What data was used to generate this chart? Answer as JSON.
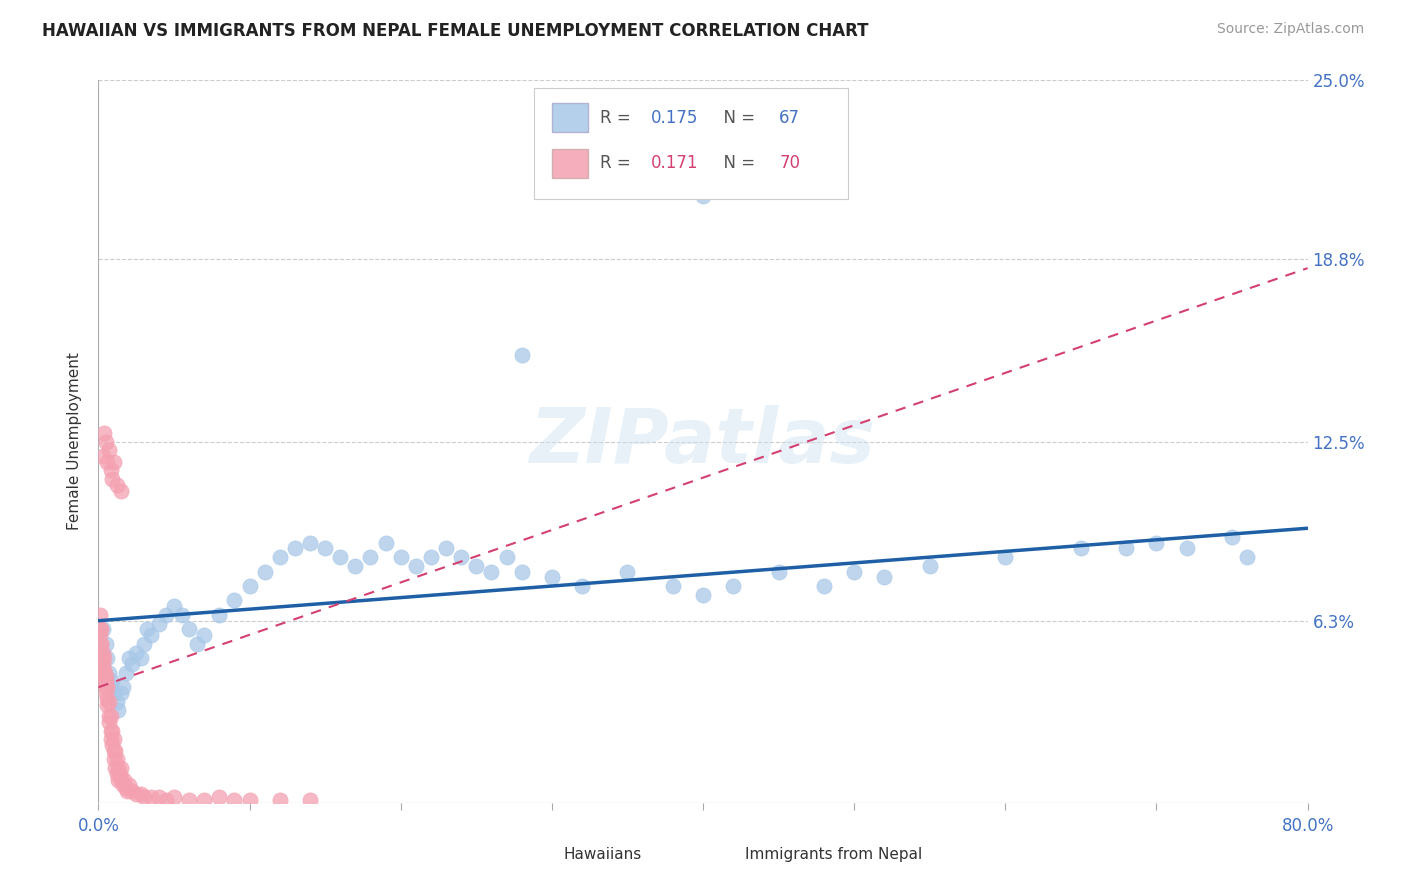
{
  "title": "HAWAIIAN VS IMMIGRANTS FROM NEPAL FEMALE UNEMPLOYMENT CORRELATION CHART",
  "source": "Source: ZipAtlas.com",
  "ylabel": "Female Unemployment",
  "r_hawaiian": 0.175,
  "n_hawaiian": 67,
  "r_nepal": 0.171,
  "n_nepal": 70,
  "xlim": [
    0,
    0.8
  ],
  "ylim": [
    0,
    0.25
  ],
  "ytick_vals": [
    0.0,
    0.063,
    0.125,
    0.188,
    0.25
  ],
  "ytick_labels": [
    "",
    "6.3%",
    "12.5%",
    "18.8%",
    "25.0%"
  ],
  "color_hawaiian": "#a8c8e8",
  "color_nepal": "#f4a0b0",
  "color_trend_hawaiian": "#1f5fa6",
  "color_trend_nepal": "#d44070",
  "background": "#ffffff",
  "hawaiian_x": [
    0.003,
    0.005,
    0.006,
    0.007,
    0.008,
    0.009,
    0.01,
    0.012,
    0.013,
    0.015,
    0.016,
    0.018,
    0.02,
    0.022,
    0.025,
    0.028,
    0.03,
    0.032,
    0.035,
    0.04,
    0.045,
    0.05,
    0.055,
    0.06,
    0.065,
    0.07,
    0.08,
    0.09,
    0.1,
    0.11,
    0.12,
    0.13,
    0.14,
    0.15,
    0.16,
    0.17,
    0.18,
    0.19,
    0.2,
    0.21,
    0.22,
    0.23,
    0.24,
    0.25,
    0.26,
    0.27,
    0.28,
    0.3,
    0.32,
    0.35,
    0.38,
    0.4,
    0.42,
    0.45,
    0.48,
    0.5,
    0.52,
    0.55,
    0.6,
    0.65,
    0.68,
    0.7,
    0.72,
    0.75,
    0.76,
    0.4,
    0.28
  ],
  "hawaiian_y": [
    0.06,
    0.055,
    0.05,
    0.045,
    0.04,
    0.042,
    0.038,
    0.035,
    0.032,
    0.038,
    0.04,
    0.045,
    0.05,
    0.048,
    0.052,
    0.05,
    0.055,
    0.06,
    0.058,
    0.062,
    0.065,
    0.068,
    0.065,
    0.06,
    0.055,
    0.058,
    0.065,
    0.07,
    0.075,
    0.08,
    0.085,
    0.088,
    0.09,
    0.088,
    0.085,
    0.082,
    0.085,
    0.09,
    0.085,
    0.082,
    0.085,
    0.088,
    0.085,
    0.082,
    0.08,
    0.085,
    0.08,
    0.078,
    0.075,
    0.08,
    0.075,
    0.072,
    0.075,
    0.08,
    0.075,
    0.08,
    0.078,
    0.082,
    0.085,
    0.088,
    0.088,
    0.09,
    0.088,
    0.092,
    0.085,
    0.21,
    0.155
  ],
  "nepal_x": [
    0.001,
    0.001,
    0.001,
    0.002,
    0.002,
    0.002,
    0.002,
    0.003,
    0.003,
    0.003,
    0.004,
    0.004,
    0.004,
    0.005,
    0.005,
    0.005,
    0.005,
    0.006,
    0.006,
    0.006,
    0.007,
    0.007,
    0.007,
    0.008,
    0.008,
    0.008,
    0.009,
    0.009,
    0.01,
    0.01,
    0.01,
    0.011,
    0.011,
    0.012,
    0.012,
    0.013,
    0.013,
    0.014,
    0.015,
    0.015,
    0.016,
    0.017,
    0.018,
    0.019,
    0.02,
    0.022,
    0.025,
    0.028,
    0.03,
    0.035,
    0.04,
    0.045,
    0.05,
    0.06,
    0.07,
    0.08,
    0.09,
    0.1,
    0.12,
    0.14,
    0.003,
    0.004,
    0.005,
    0.006,
    0.007,
    0.008,
    0.009,
    0.01,
    0.012,
    0.015
  ],
  "nepal_y": [
    0.06,
    0.065,
    0.058,
    0.055,
    0.06,
    0.05,
    0.055,
    0.048,
    0.052,
    0.045,
    0.05,
    0.042,
    0.046,
    0.04,
    0.044,
    0.038,
    0.042,
    0.036,
    0.04,
    0.034,
    0.03,
    0.035,
    0.028,
    0.025,
    0.03,
    0.022,
    0.02,
    0.025,
    0.018,
    0.022,
    0.015,
    0.018,
    0.012,
    0.015,
    0.01,
    0.012,
    0.008,
    0.01,
    0.008,
    0.012,
    0.006,
    0.008,
    0.005,
    0.004,
    0.006,
    0.004,
    0.003,
    0.003,
    0.002,
    0.002,
    0.002,
    0.001,
    0.002,
    0.001,
    0.001,
    0.002,
    0.001,
    0.001,
    0.001,
    0.001,
    0.12,
    0.128,
    0.125,
    0.118,
    0.122,
    0.115,
    0.112,
    0.118,
    0.11,
    0.108
  ]
}
